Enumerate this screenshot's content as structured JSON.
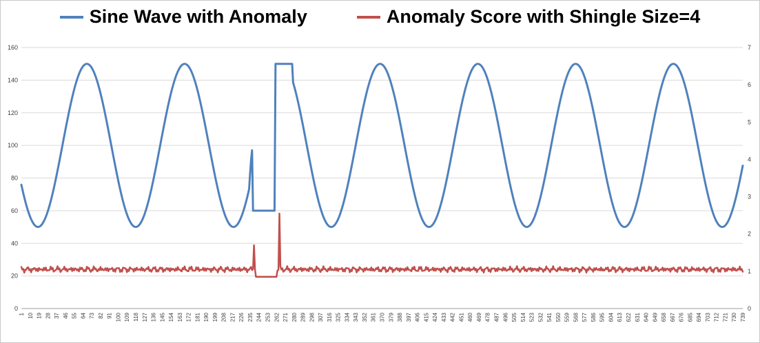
{
  "chart_data": {
    "type": "line",
    "title": "",
    "legend_position": "top",
    "grid": true,
    "background": "#ffffff",
    "gridline_color": "#d9d9d9",
    "axis_line_color": "#9e9e9e",
    "x_axis": {
      "min": 1,
      "max": 739,
      "tick_start": 1,
      "tick_step": 9,
      "tick_end": 739,
      "first_labels": [
        1,
        10,
        19,
        28,
        37,
        46,
        55,
        64,
        73
      ],
      "last_label": 739
    },
    "left_axis": {
      "min": 0,
      "max": 160,
      "ticks": [
        0,
        20,
        40,
        60,
        80,
        100,
        120,
        140,
        160
      ]
    },
    "right_axis": {
      "min": 0,
      "max": 7,
      "ticks": [
        0,
        1,
        2,
        3,
        4,
        5,
        6,
        7
      ]
    },
    "series": [
      {
        "name": "Sine Wave with Anomaly",
        "color": "#4F81BD",
        "axis": "left",
        "line_width": 3,
        "generator": {
          "kind": "sine",
          "baseline": 100,
          "amplitude": 50,
          "period": 100,
          "trough_x": 18
        },
        "anomalies": [
          {
            "kind": "ramp",
            "x_start": 234,
            "x_end": 237,
            "to": 97
          },
          {
            "kind": "flat",
            "x_start": 238,
            "x_end": 260,
            "value": 60
          },
          {
            "kind": "flat",
            "x_start": 261,
            "x_end": 278,
            "value": 150
          }
        ]
      },
      {
        "name": "Anomaly Score with Shingle Size=4",
        "color": "#C0504D",
        "axis": "right",
        "line_width": 2.5,
        "generator": {
          "kind": "noisy",
          "baseline": 1.05,
          "noise": 0.07
        },
        "anomalies": [
          {
            "kind": "spike",
            "x": 239,
            "value": 1.7
          },
          {
            "kind": "flat",
            "x_start": 241,
            "x_end": 262,
            "value": 0.85
          },
          {
            "kind": "spike",
            "x": 265,
            "value": 2.55
          }
        ]
      }
    ]
  }
}
